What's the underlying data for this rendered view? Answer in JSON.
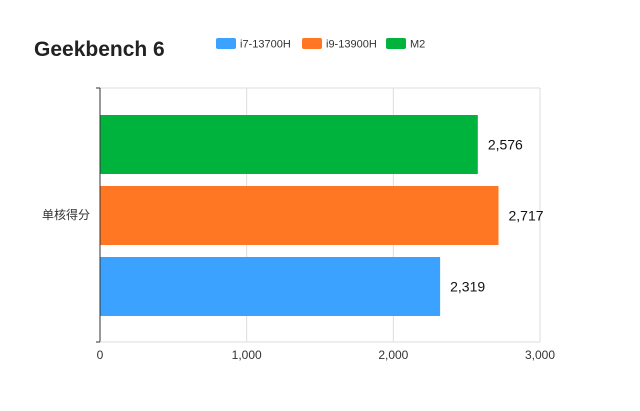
{
  "chart_data": {
    "type": "bar",
    "orientation": "horizontal",
    "title": "Geekbench 6",
    "categories": [
      "单核得分"
    ],
    "series": [
      {
        "name": "i7-13700H",
        "values": [
          2319
        ],
        "color": "#3ba2ff"
      },
      {
        "name": "i9-13900H",
        "values": [
          2717
        ],
        "color": "#ff7722"
      },
      {
        "name": "M2",
        "values": [
          2576
        ],
        "color": "#00b33c"
      }
    ],
    "xlim": [
      0,
      3000
    ],
    "xticks": [
      0,
      1000,
      2000,
      3000
    ],
    "xtick_labels": [
      "0",
      "1,000",
      "2,000",
      "3,000"
    ],
    "data_labels": [
      "2,319",
      "2,717",
      "2,576"
    ],
    "grid": true,
    "legend": "top"
  }
}
